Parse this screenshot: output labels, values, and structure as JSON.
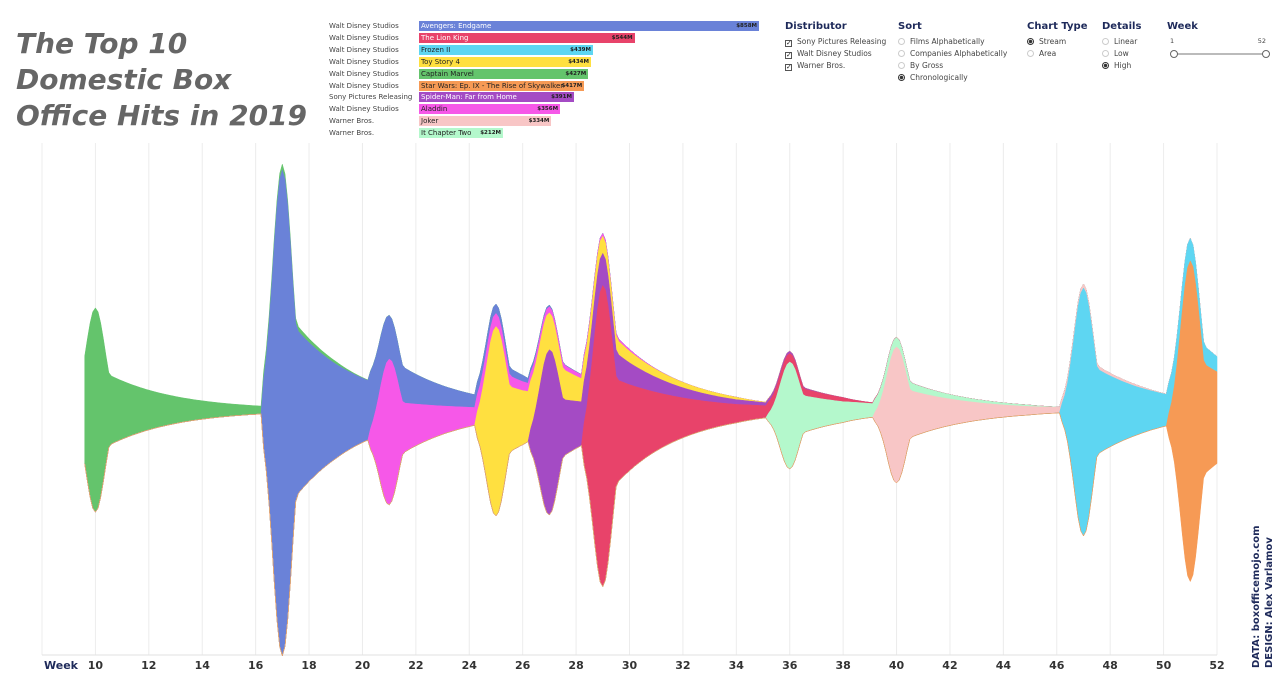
{
  "title": "The Top 10 Domestic Box Office Hits in 2019",
  "chart_data": {
    "type": "area",
    "x_axis_label": "Week",
    "x_ticks": [
      10,
      12,
      14,
      16,
      18,
      20,
      22,
      24,
      26,
      28,
      30,
      32,
      34,
      36,
      38,
      40,
      42,
      44,
      46,
      48,
      50,
      52
    ],
    "xlim": [
      8,
      52
    ],
    "grid": true,
    "films": [
      {
        "distributor": "Walt Disney Studios",
        "film": "Avengers: Endgame",
        "gross": "$858M",
        "gross_value": 858,
        "color": "#6a82d8",
        "text_color": "#ffffff",
        "release_week": 17,
        "peak": 1.0
      },
      {
        "distributor": "Walt Disney Studios",
        "film": "The Lion King",
        "gross": "$544M",
        "gross_value": 544,
        "color": "#e8436a",
        "text_color": "#ffffff",
        "release_week": 29,
        "peak": 0.62
      },
      {
        "distributor": "Walt Disney Studios",
        "film": "Frozen II",
        "gross": "$439M",
        "gross_value": 439,
        "color": "#5ed6f2",
        "text_color": "#222222",
        "release_week": 47,
        "peak": 0.51
      },
      {
        "distributor": "Walt Disney Studios",
        "film": "Toy Story 4",
        "gross": "$434M",
        "gross_value": 434,
        "color": "#ffe040",
        "text_color": "#222222",
        "release_week": 25,
        "peak": 0.39
      },
      {
        "distributor": "Walt Disney Studios",
        "film": "Captain Marvel",
        "gross": "$427M",
        "gross_value": 427,
        "color": "#64c46c",
        "text_color": "#222222",
        "release_week": 10,
        "peak": 0.42
      },
      {
        "distributor": "Walt Disney Studios",
        "film": "Star Wars: Ep. IX - The Rise of Skywalker",
        "gross": "$417M",
        "gross_value": 417,
        "color": "#f69a55",
        "text_color": "#222222",
        "release_week": 51,
        "peak": 0.66
      },
      {
        "distributor": "Sony Pictures Releasing",
        "film": "Spider-Man: Far from Home",
        "gross": "$391M",
        "gross_value": 391,
        "color": "#a44bc4",
        "text_color": "#ffffff",
        "release_week": 27,
        "peak": 0.34
      },
      {
        "distributor": "Walt Disney Studios",
        "film": "Aladdin",
        "gross": "$356M",
        "gross_value": 356,
        "color": "#f658e8",
        "text_color": "#222222",
        "release_week": 21,
        "peak": 0.3
      },
      {
        "distributor": "Warner Bros.",
        "film": "Joker",
        "gross": "$334M",
        "gross_value": 334,
        "color": "#f8c6c6",
        "text_color": "#222222",
        "release_week": 40,
        "peak": 0.28
      },
      {
        "distributor": "Warner Bros.",
        "film": "It Chapter Two",
        "gross": "$212M",
        "gross_value": 212,
        "color": "#b4f8cc",
        "text_color": "#222222",
        "release_week": 36,
        "peak": 0.22
      }
    ]
  },
  "controls": {
    "distributor": {
      "title": "Distributor",
      "options": [
        "Sony Pictures Releasing",
        "Walt Disney Studios",
        "Warner Bros."
      ],
      "checked": [
        true,
        true,
        true
      ]
    },
    "sort": {
      "title": "Sort",
      "options": [
        "Films Alphabetically",
        "Companies Alphabetically",
        "By Gross",
        "Chronologically"
      ],
      "selected": 3
    },
    "chart_type": {
      "title": "Chart Type",
      "options": [
        "Stream",
        "Area"
      ],
      "selected": 0
    },
    "details": {
      "title": "Details",
      "options": [
        "Linear",
        "Low",
        "High"
      ],
      "selected": 2
    },
    "week": {
      "title": "Week",
      "min": "1",
      "max": "52",
      "range": [
        1,
        52
      ]
    }
  },
  "credits": {
    "data": "DATA: boxofficemojo.com",
    "design": "DESIGN: Alex Varlamov"
  }
}
